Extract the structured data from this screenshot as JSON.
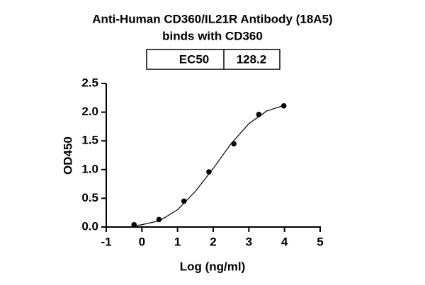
{
  "chart_data": {
    "type": "scatter",
    "title": [
      "Anti-Human CD360/IL21R Antibody (18A5)",
      "binds with CD360"
    ],
    "ec50_table": {
      "label": "EC50",
      "value": 128.2
    },
    "x_label": "Log (ng/ml)",
    "y_label": "OD450",
    "xlim": [
      -1,
      5
    ],
    "xticks": [
      -1,
      0,
      1,
      2,
      3,
      4,
      5
    ],
    "ylim": [
      0,
      2.5
    ],
    "yticks": [
      {
        "value": 0,
        "label": "0.0"
      },
      0.5,
      {
        "value": 1,
        "label": "1.0"
      },
      1.5,
      {
        "value": 2,
        "label": "2.0"
      },
      2.5
    ],
    "grid": false,
    "series": [
      {
        "type": "scatter",
        "color": "#000000",
        "x": [
          -0.22,
          0.48,
          1.18,
          1.88,
          2.58,
          3.28,
          3.98
        ],
        "values": [
          0.04,
          0.13,
          0.45,
          0.96,
          1.45,
          1.96,
          2.11
        ]
      },
      {
        "type": "line",
        "color": "#000000",
        "x": [
          -0.22,
          0,
          0.5,
          1,
          1.5,
          2,
          2.5,
          3,
          3.5,
          4
        ],
        "values": [
          0.02,
          0.04,
          0.11,
          0.3,
          0.62,
          1.02,
          1.45,
          1.8,
          2.02,
          2.12
        ]
      }
    ]
  }
}
